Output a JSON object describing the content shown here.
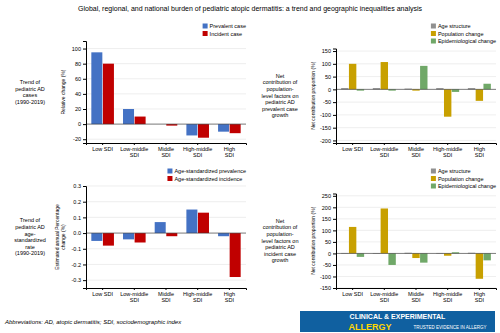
{
  "title": "Global, regional, and national burden of pediatric atopic dermatitis: a trend and geographic inequalities analysis",
  "annotations": [
    "Abbreviations: AD, atopic dermatitis; SDI, sociodemographic index",
    "CLINICAL & EXPERIMENTAL",
    "ALLERGY",
    "TRUSTED EVIDENCE IN ALLERGY"
  ],
  "chart_data": [
    {
      "type": "bar",
      "title": "Trend of\npediatric AD\ncases\n(1990-2019)",
      "y_label": "Relative change (%)",
      "categories": [
        "Low SDI",
        "Low-middle\nSDI",
        "Middle\nSDI",
        "High-middle\nSDI",
        "High\nSDI"
      ],
      "series": [
        {
          "name": "Prevalent case",
          "color": "#4472C4",
          "values": [
            95,
            20,
            0,
            -15,
            -10
          ]
        },
        {
          "name": "Incident case",
          "color": "#C00000",
          "values": [
            80,
            10,
            -2,
            -18,
            -12
          ]
        }
      ],
      "ylim": [
        -25,
        110
      ],
      "yticks": [
        -20,
        0,
        20,
        40,
        60,
        80,
        100
      ],
      "grid": true,
      "legend": "upper right"
    },
    {
      "type": "bar",
      "title": "Trend of\npediatric AD\nage-\nstandardized\nrate\n(1990-2019)",
      "y_label": "Estimated annual Percentage\nchange (%)",
      "categories": [
        "Low SDI",
        "Low-middle\nSDI",
        "Middle\nSDI",
        "High-middle\nSDI",
        "High\nSDI"
      ],
      "series": [
        {
          "name": "Age-standardized prevalence",
          "color": "#4472C4",
          "values": [
            -0.05,
            -0.04,
            0.07,
            0.15,
            -0.02
          ]
        },
        {
          "name": "Age-standardized incidence",
          "color": "#C00000",
          "values": [
            -0.08,
            -0.06,
            -0.02,
            0.13,
            -0.28
          ]
        }
      ],
      "ylim": [
        -0.35,
        0.3
      ],
      "yticks": [
        -0.3,
        -0.2,
        -0.1,
        {
          "value": 0.0,
          "label": "0.0"
        },
        0.1,
        0.2,
        0.3
      ],
      "grid": true,
      "legend": "upper right"
    },
    {
      "type": "bar",
      "title": "Net\ncontribution of\npopulation-\nlevel factors on\npediatric AD\nprevalent case\ngrowth",
      "y_label": "Net contribution proportion (%)",
      "categories": [
        "Low SDI",
        "Low-middle\nSDI",
        "Middle\nSDI",
        "High-middle\nSDI",
        "High\nSDI"
      ],
      "series": [
        {
          "name": "Age structure",
          "color": "#909090",
          "values": [
            5,
            5,
            3,
            5,
            5
          ]
        },
        {
          "name": "Population change",
          "color": "#C8A000",
          "values": [
            100,
            107,
            -5,
            -107,
            -45
          ]
        },
        {
          "name": "Epidemiological change",
          "color": "#70A868",
          "values": [
            -5,
            -5,
            92,
            -10,
            22
          ]
        }
      ],
      "ylim": [
        -210,
        160
      ],
      "yticks": [
        -200,
        -150,
        -100,
        -50,
        0,
        50,
        100,
        150
      ],
      "grid": true,
      "legend": "upper right"
    },
    {
      "type": "bar",
      "title": "Net\ncontribution of\npopulation-\nlevel factors on\npediatric AD\nincident case\ngrowth",
      "y_label": "Net contribution proportion (%)",
      "categories": [
        "Low SDI",
        "Low-middle\nSDI",
        "Middle\nSDI",
        "High-middle\nSDI",
        "High\nSDI"
      ],
      "series": [
        {
          "name": "Age structure",
          "color": "#909090",
          "values": [
            2,
            -2,
            3,
            2,
            3
          ]
        },
        {
          "name": "Population change",
          "color": "#C8A000",
          "values": [
            115,
            195,
            -20,
            -10,
            -110
          ]
        },
        {
          "name": "Epidemiological change",
          "color": "#70A868",
          "values": [
            -15,
            -50,
            -40,
            5,
            -30
          ]
        }
      ],
      "ylim": [
        -150,
        260
      ],
      "yticks": [
        -150,
        -100,
        -50,
        0,
        50,
        100,
        150,
        200,
        250
      ],
      "grid": true,
      "legend": "upper right"
    }
  ]
}
